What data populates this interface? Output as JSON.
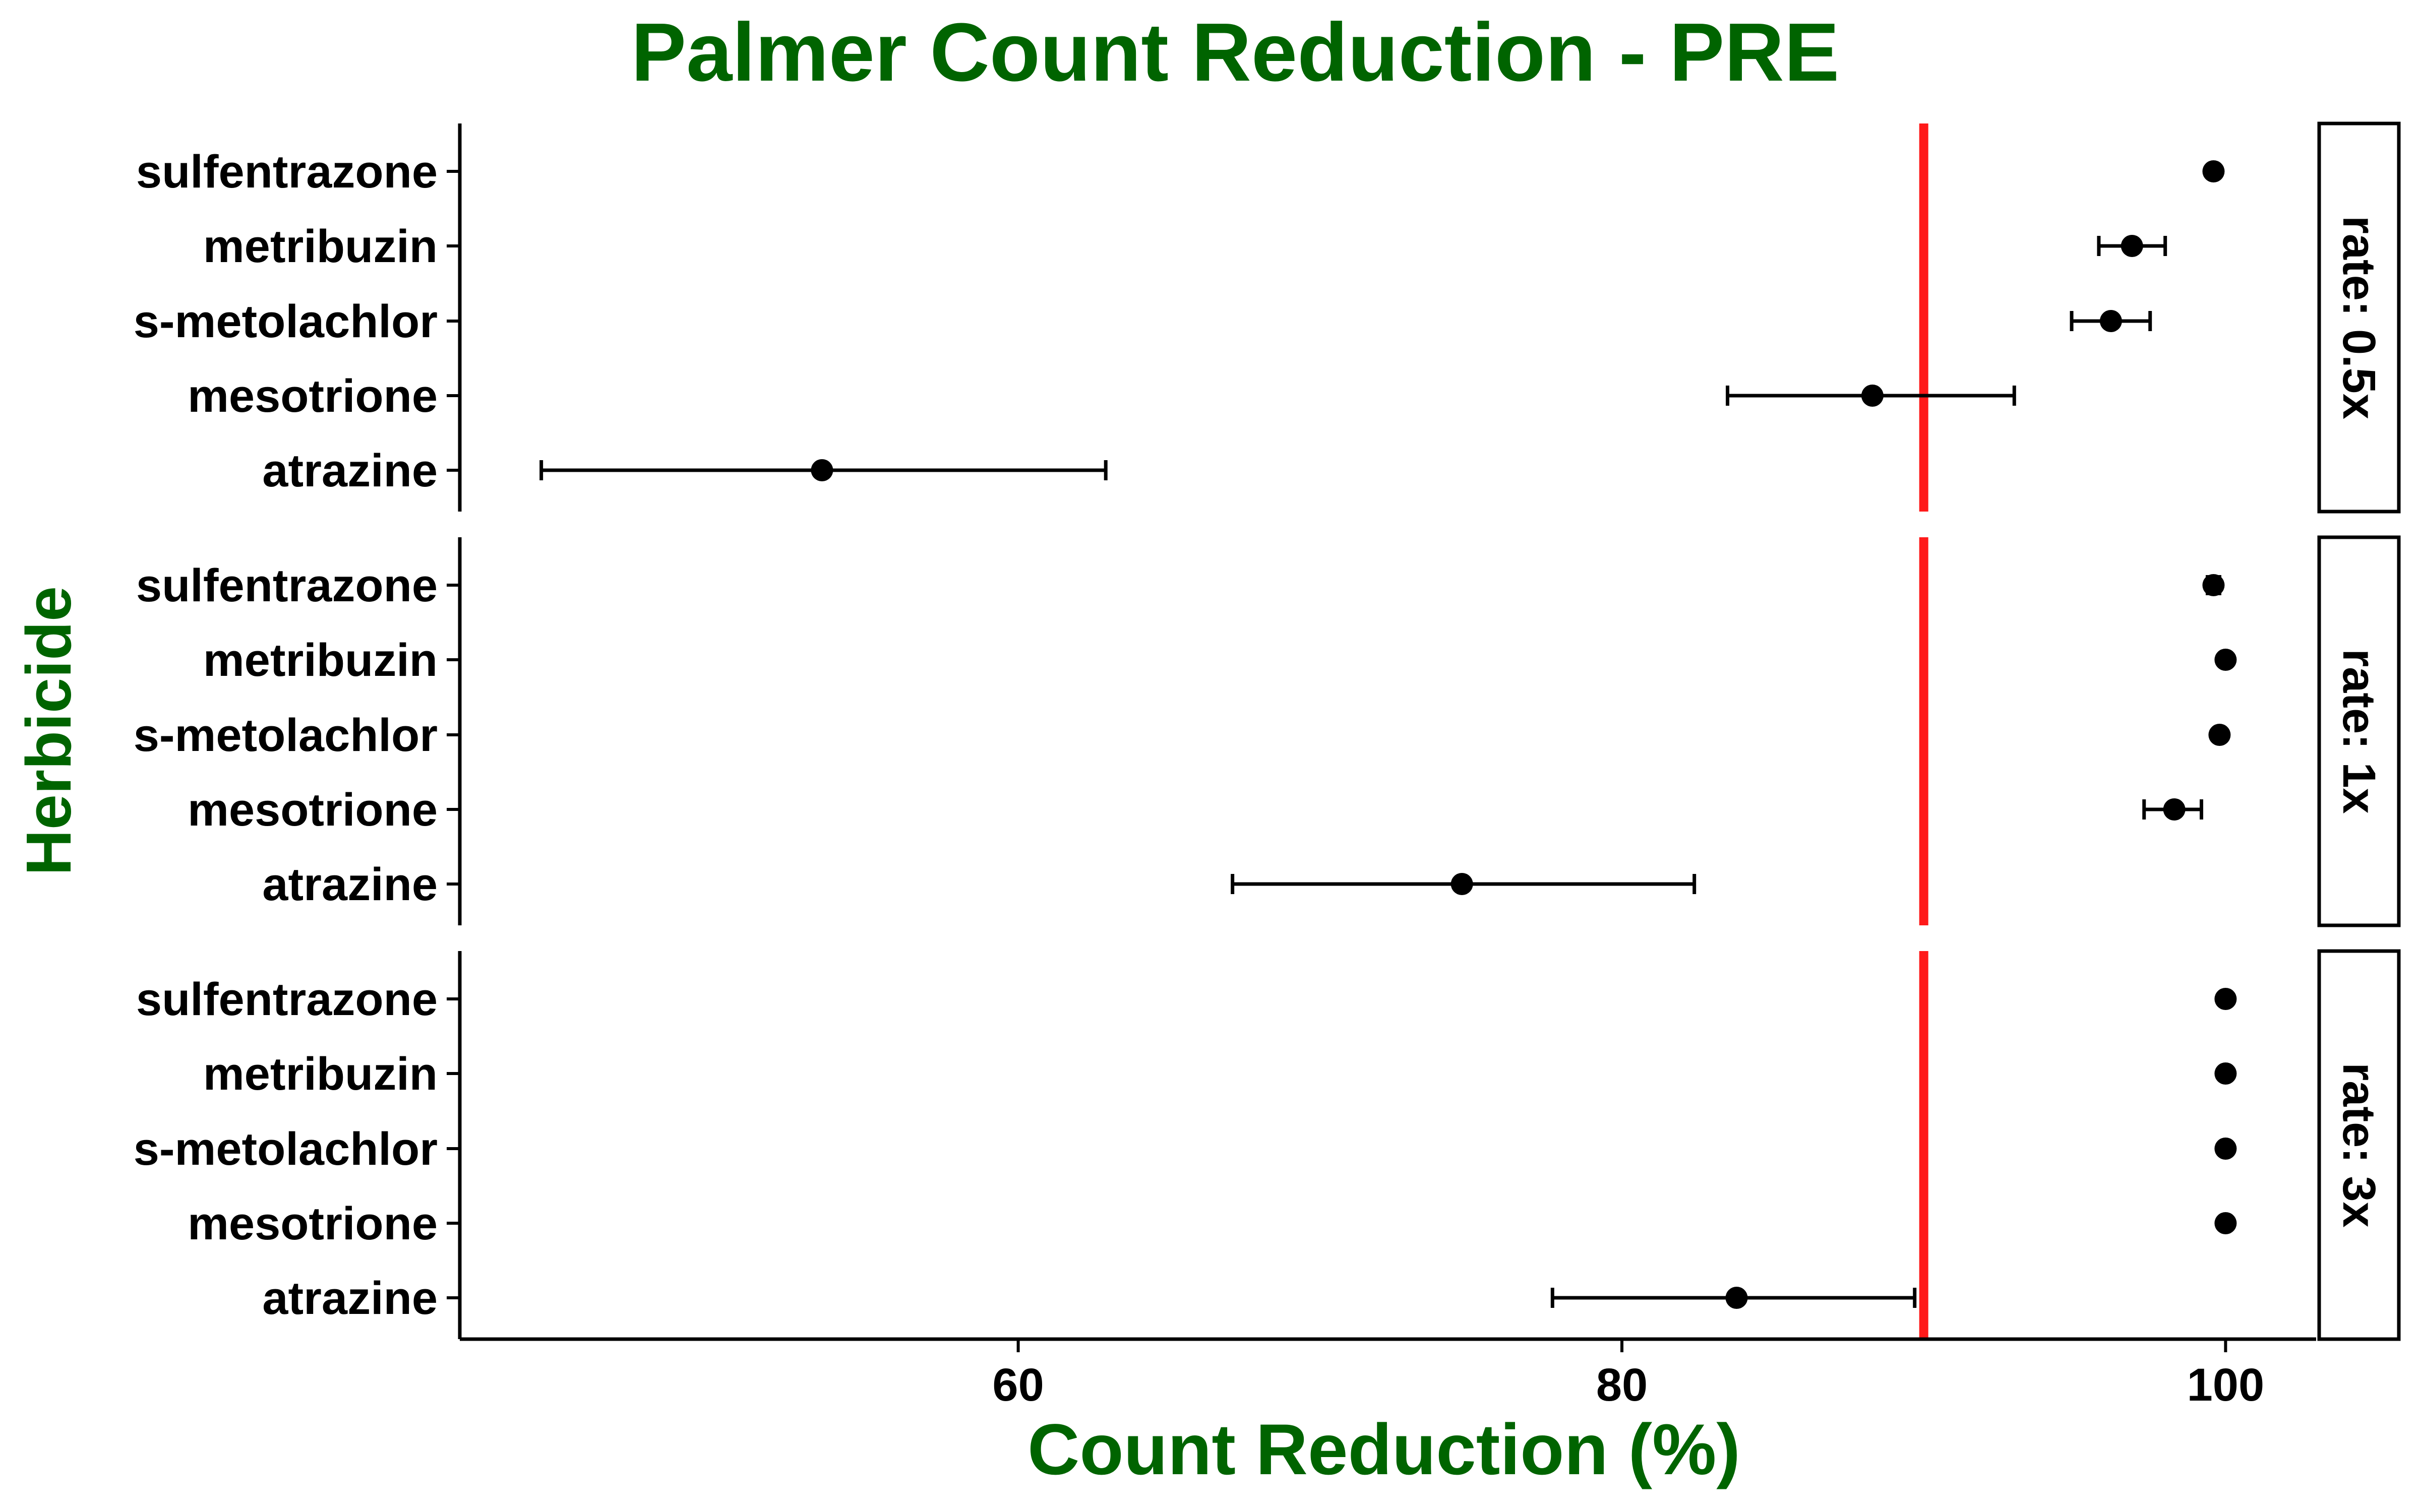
{
  "chart_data": {
    "type": "scatter",
    "title": "Palmer Count Reduction - PRE",
    "xlabel": "Count Reduction (%)",
    "ylabel": "Herbicide",
    "xlim": [
      41.5,
      103
    ],
    "x_ticks": [
      60,
      80,
      100
    ],
    "reference_line": {
      "x": 90,
      "color": "#ff1a1a"
    },
    "grid": false,
    "categories": [
      "sulfentrazone",
      "metribuzin",
      "s-metolachlor",
      "mesotrione",
      "atrazine"
    ],
    "panels": [
      {
        "label": "rate: 0.5x",
        "points": [
          {
            "herbicide": "sulfentrazone",
            "mean": 99.6,
            "lower": null,
            "upper": null
          },
          {
            "herbicide": "metribuzin",
            "mean": 96.9,
            "lower": 95.8,
            "upper": 98.0
          },
          {
            "herbicide": "s-metolachlor",
            "mean": 96.2,
            "lower": 94.9,
            "upper": 97.5
          },
          {
            "herbicide": "mesotrione",
            "mean": 88.3,
            "lower": 83.5,
            "upper": 93.0
          },
          {
            "herbicide": "atrazine",
            "mean": 53.5,
            "lower": 44.2,
            "upper": 62.9
          }
        ]
      },
      {
        "label": "rate: 1x",
        "points": [
          {
            "herbicide": "sulfentrazone",
            "mean": 99.6,
            "lower": 99.4,
            "upper": 99.8
          },
          {
            "herbicide": "metribuzin",
            "mean": 100.0,
            "lower": null,
            "upper": null
          },
          {
            "herbicide": "s-metolachlor",
            "mean": 99.8,
            "lower": null,
            "upper": null
          },
          {
            "herbicide": "mesotrione",
            "mean": 98.3,
            "lower": 97.3,
            "upper": 99.2
          },
          {
            "herbicide": "atrazine",
            "mean": 74.7,
            "lower": 67.1,
            "upper": 82.4
          }
        ]
      },
      {
        "label": "rate: 3x",
        "points": [
          {
            "herbicide": "sulfentrazone",
            "mean": 100.0,
            "lower": null,
            "upper": null
          },
          {
            "herbicide": "metribuzin",
            "mean": 100.0,
            "lower": null,
            "upper": null
          },
          {
            "herbicide": "s-metolachlor",
            "mean": 100.0,
            "lower": null,
            "upper": null
          },
          {
            "herbicide": "mesotrione",
            "mean": 100.0,
            "lower": null,
            "upper": null
          },
          {
            "herbicide": "atrazine",
            "mean": 83.8,
            "lower": 77.7,
            "upper": 89.7
          }
        ]
      }
    ]
  }
}
